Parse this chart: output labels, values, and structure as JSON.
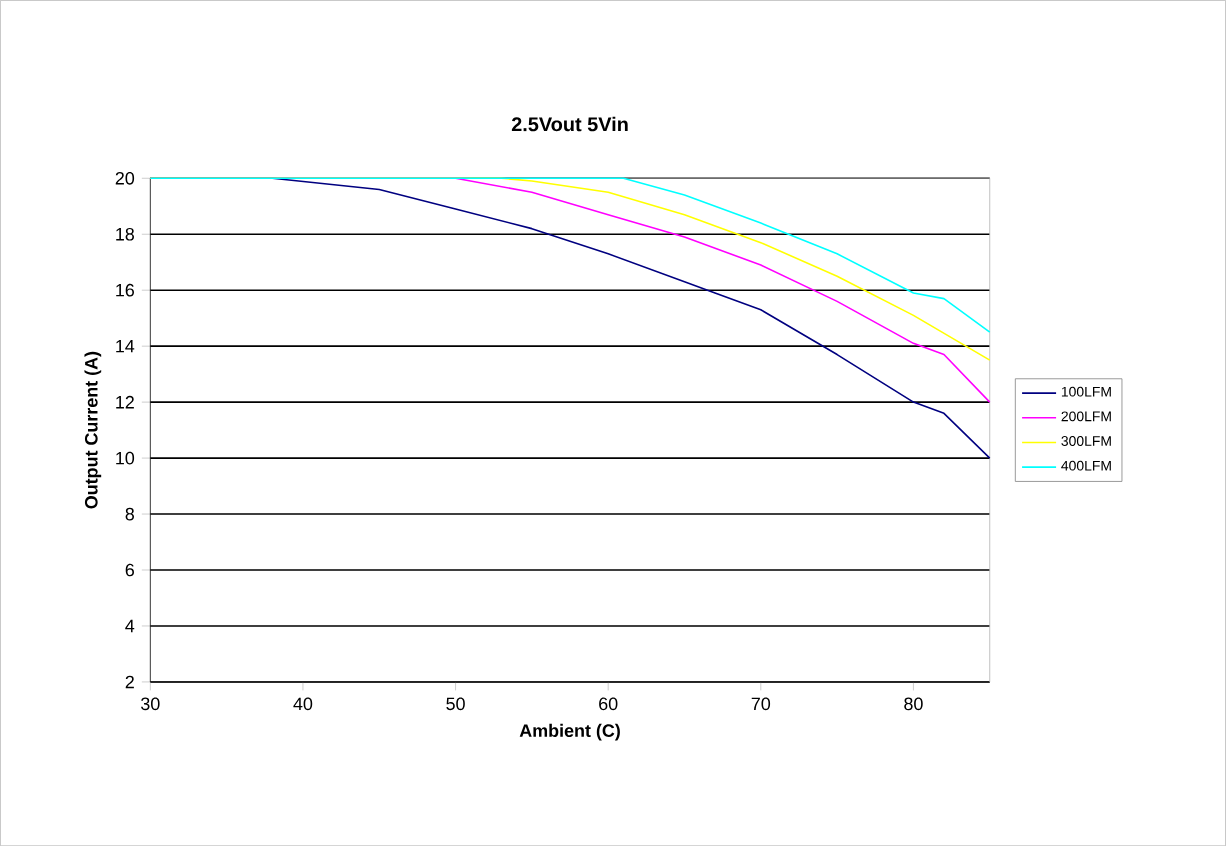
{
  "chart_data": {
    "type": "line",
    "title": "2.5Vout 5Vin",
    "xlabel": "Ambient (C)",
    "ylabel": "Output Current (A)",
    "xlim": [
      30,
      85
    ],
    "xticks": [
      30,
      40,
      50,
      60,
      70,
      80
    ],
    "ylim": [
      2,
      20
    ],
    "yticks": [
      2,
      4,
      6,
      8,
      10,
      12,
      14,
      16,
      18,
      20
    ],
    "grid": "y",
    "legend": "right",
    "marker": "none",
    "line_style": "solid",
    "series": [
      {
        "name": "100LFM",
        "color": "#000080",
        "x": [
          30,
          38,
          45,
          50,
          55,
          60,
          65,
          67,
          70,
          75,
          80,
          82,
          85
        ],
        "values": [
          20,
          20,
          19.6,
          18.9,
          18.2,
          17.3,
          16.3,
          15.9,
          15.3,
          13.7,
          12.0,
          11.6,
          10.0
        ]
      },
      {
        "name": "200LFM",
        "color": "#ff00ff",
        "x": [
          30,
          50,
          55,
          60,
          65,
          70,
          75,
          80,
          82,
          85
        ],
        "values": [
          20,
          20,
          19.5,
          18.7,
          17.9,
          16.9,
          15.6,
          14.1,
          13.7,
          12.0
        ]
      },
      {
        "name": "300LFM",
        "color": "#ffff00",
        "x": [
          30,
          53,
          55,
          60,
          65,
          70,
          75,
          80,
          85
        ],
        "values": [
          20,
          20,
          19.9,
          19.5,
          18.7,
          17.7,
          16.5,
          15.1,
          13.5
        ]
      },
      {
        "name": "400LFM",
        "color": "#00ffff",
        "x": [
          30,
          61,
          65,
          70,
          75,
          80,
          82,
          85
        ],
        "values": [
          20,
          20,
          19.4,
          18.4,
          17.3,
          15.9,
          15.7,
          14.5
        ]
      }
    ]
  }
}
